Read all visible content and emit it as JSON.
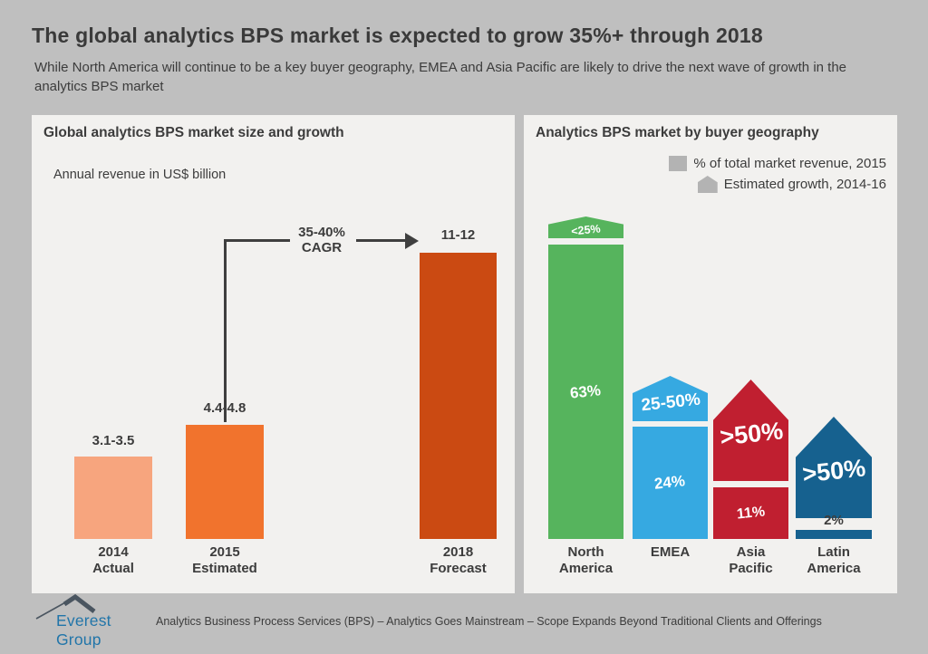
{
  "header": {
    "title": "The global analytics BPS market is expected to grow 35%+ through 2018",
    "subtitle": "While North America will continue to be a key buyer geography, EMEA and Asia Pacific are likely to drive the next wave of growth in the analytics BPS market"
  },
  "market_panel": {
    "title": "Global analytics BPS market size and growth",
    "unit_note": "Annual revenue in US$ billion",
    "cagr": {
      "line1": "35-40%",
      "line2": "CAGR"
    },
    "bars": [
      {
        "value_label": "3.1-3.5",
        "year": "2014",
        "status": "Actual"
      },
      {
        "value_label": "4.4-4.8",
        "year": "2015",
        "status": "Estimated"
      },
      {
        "value_label": "11-12",
        "year": "2018",
        "status": "Forecast"
      }
    ]
  },
  "geo_panel": {
    "title": "Analytics BPS market by buyer geography",
    "legend": {
      "revenue": "% of total market revenue, 2015",
      "growth": "Estimated growth, 2014-16"
    },
    "regions": [
      {
        "name_line1": "North",
        "name_line2": "America",
        "share": "63%",
        "growth": "<25%"
      },
      {
        "name_line1": "EMEA",
        "name_line2": "",
        "share": "24%",
        "growth": "25-50%"
      },
      {
        "name_line1": "Asia",
        "name_line2": "Pacific",
        "share": "11%",
        "growth": ">50%"
      },
      {
        "name_line1": "Latin",
        "name_line2": "America",
        "share": "2%",
        "growth": ">50%"
      }
    ]
  },
  "footer": {
    "brand": "Everest Group",
    "tagline": "Analytics Business Process Services (BPS) – Analytics Goes Mainstream – Scope Expands Beyond Traditional Clients and Offerings"
  },
  "colors": {
    "page_background": "#BFBFBF",
    "panel_background": "#F2F1EF",
    "bar_2014": "#F7A57E",
    "bar_2015": "#F1732D",
    "bar_2018": "#CB4A12",
    "north_america": "#56B45D",
    "emea": "#36A9E1",
    "asia_pacific": "#C01F30",
    "latin_america": "#16618F",
    "legend_gray": "#B3B3B3",
    "brand_blue": "#2175A9",
    "text_dark": "#3C3C3C"
  },
  "chart_data": [
    {
      "type": "bar",
      "title": "Global analytics BPS market size and growth",
      "ylabel": "Annual revenue in US$ billion",
      "categories": [
        "2014 Actual",
        "2015 Estimated",
        "2018 Forecast"
      ],
      "values": [
        3.3,
        4.6,
        11.5
      ],
      "value_labels": [
        "3.1-3.5",
        "4.4-4.8",
        "11-12"
      ],
      "annotation": "35-40% CAGR from 2015 Estimated to 2018 Forecast",
      "bar_colors": [
        "#F7A57E",
        "#F1732D",
        "#CB4A12"
      ],
      "ylim": [
        0,
        12
      ],
      "grid": false,
      "unit": "US$ billion"
    },
    {
      "type": "bar",
      "title": "Analytics BPS market by buyer geography",
      "categories": [
        "North America",
        "EMEA",
        "Asia Pacific",
        "Latin America"
      ],
      "series": [
        {
          "name": "% of total market revenue, 2015",
          "values": [
            63,
            24,
            11,
            2
          ],
          "labels": [
            "63%",
            "24%",
            "11%",
            "2%"
          ]
        },
        {
          "name": "Estimated growth, 2014-16",
          "labels": [
            "<25%",
            "25-50%",
            ">50%",
            ">50%"
          ]
        }
      ],
      "bar_colors": [
        "#56B45D",
        "#36A9E1",
        "#C01F30",
        "#16618F"
      ],
      "legend_position": "top-right",
      "ylim": [
        0,
        70
      ],
      "grid": false,
      "unit": "%"
    }
  ]
}
